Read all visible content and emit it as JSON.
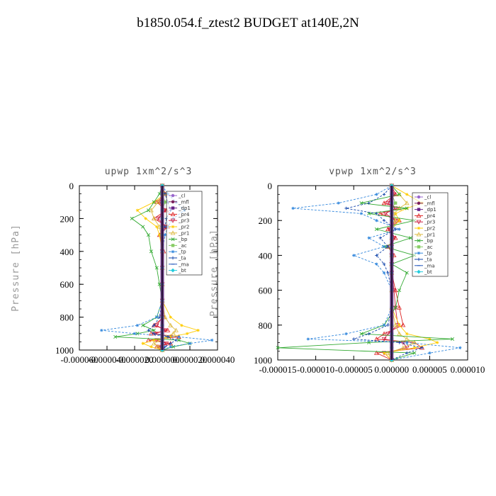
{
  "title": "b1850.054.f_ztest2  BUDGET at140E,2N",
  "chart_data": [
    {
      "type": "line",
      "title": "upwp   1xm^2/s^3",
      "xlabel": "",
      "ylabel": "Pressure [hPa]",
      "xlim": [
        -6e-05,
        4e-05
      ],
      "ylim": [
        1000,
        0
      ],
      "xticks": [
        -6e-05,
        -4e-05,
        -2e-05,
        0,
        2e-05,
        4e-05
      ],
      "xtick_labels": [
        "-0.000060",
        "-0.000040",
        "-0.000020",
        "0.000000",
        "0.000020",
        "0.000040"
      ],
      "yticks": [
        0,
        200,
        400,
        600,
        800,
        1000
      ],
      "legend_position": "top-right",
      "y": [
        0,
        50,
        100,
        150,
        200,
        250,
        300,
        400,
        500,
        600,
        700,
        800,
        850,
        880,
        900,
        920,
        940,
        960,
        980,
        1000
      ],
      "series": [
        {
          "name": "_cl",
          "color": "#9966cc",
          "values": [
            0,
            0,
            0,
            0,
            0,
            0,
            0,
            0,
            0,
            0,
            0,
            0,
            0,
            0,
            0,
            0,
            0,
            0,
            0,
            0
          ]
        },
        {
          "name": "_mfl",
          "color": "#7a1f5c",
          "values": [
            0,
            0,
            0,
            0,
            0,
            0,
            0,
            0,
            0,
            0,
            0,
            0,
            0,
            0,
            0,
            0,
            0,
            0,
            0,
            0
          ]
        },
        {
          "name": "_dp1",
          "color": "#66228a",
          "values": [
            0,
            0,
            0,
            0,
            0,
            0,
            0,
            0,
            0,
            0,
            0,
            0,
            0,
            0,
            0,
            0,
            0,
            0,
            0,
            0
          ]
        },
        {
          "name": "_pr4",
          "color": "#dd2222",
          "values": [
            0,
            2e-06,
            -4e-06,
            3e-06,
            -6e-06,
            4e-06,
            -2e-06,
            1e-06,
            0,
            0,
            0,
            1e-06,
            -6e-06,
            4e-06,
            -8e-06,
            1.2e-05,
            -1e-05,
            6e-06,
            -4e-06,
            0
          ]
        },
        {
          "name": "_pr3",
          "color": "#cc2244",
          "values": [
            0,
            1e-06,
            -2e-06,
            2e-06,
            -3e-06,
            2e-06,
            -1e-06,
            0,
            0,
            0,
            0,
            0,
            -4e-06,
            2e-06,
            -5e-06,
            6e-06,
            -4e-06,
            3e-06,
            -2e-06,
            0
          ]
        },
        {
          "name": "_pr2",
          "color": "#ffcc00",
          "values": [
            0,
            2e-06,
            -6e-06,
            -1.8e-05,
            -1.2e-05,
            -4e-06,
            -2e-06,
            0,
            0,
            0,
            0,
            6e-06,
            1.4e-05,
            2.6e-05,
            1.8e-05,
            6e-06,
            -6e-06,
            -1.4e-05,
            -8e-06,
            0
          ]
        },
        {
          "name": "_pr1",
          "color": "#ddbb44",
          "values": [
            0,
            1e-06,
            -3e-06,
            -8e-06,
            -6e-06,
            -2e-06,
            -1e-06,
            0,
            0,
            0,
            0,
            2e-06,
            6e-06,
            1e-05,
            8e-06,
            3e-06,
            -2e-06,
            -6e-06,
            -3e-06,
            0
          ]
        },
        {
          "name": "_bp",
          "color": "#33aa33",
          "values": [
            0,
            -2e-06,
            -6e-06,
            -1e-05,
            -2.2e-05,
            -1.4e-05,
            -1e-05,
            -8e-06,
            -4e-06,
            -2e-06,
            0,
            -4e-06,
            -1.4e-05,
            -6e-06,
            -1.8e-05,
            -3.4e-05,
            1.2e-05,
            2e-05,
            8e-06,
            0
          ]
        },
        {
          "name": "_ac",
          "color": "#88cc66",
          "values": [
            0,
            0,
            2e-06,
            0,
            0,
            0,
            0,
            0,
            0,
            0,
            0,
            0,
            0,
            0,
            0,
            0,
            0,
            0,
            0,
            0
          ]
        },
        {
          "name": "_tp",
          "color": "#3388dd",
          "values": [
            0,
            4e-06,
            1e-05,
            1.6e-05,
            8e-06,
            4e-06,
            2e-06,
            0,
            0,
            0,
            0,
            -4e-06,
            -1.8e-05,
            -4.4e-05,
            -2e-05,
            1.2e-05,
            3.6e-05,
            2e-05,
            6e-06,
            0
          ]
        },
        {
          "name": "_ta",
          "color": "#1144aa",
          "values": [
            0,
            2e-06,
            4e-06,
            6e-06,
            3e-06,
            2e-06,
            0,
            0,
            0,
            0,
            0,
            -2e-06,
            -6e-06,
            -1e-05,
            -6e-06,
            4e-06,
            1e-05,
            6e-06,
            2e-06,
            0
          ]
        },
        {
          "name": "_ma",
          "color": "#2255bb",
          "values": [
            0,
            0,
            0,
            0,
            0,
            0,
            0,
            0,
            0,
            0,
            0,
            0,
            0,
            0,
            0,
            0,
            0,
            0,
            0,
            0
          ]
        },
        {
          "name": "_bt",
          "color": "#22ccdd",
          "values": [
            0,
            0,
            0,
            0,
            0,
            0,
            0,
            0,
            0,
            0,
            0,
            0,
            0,
            0,
            0,
            0,
            0,
            0,
            0,
            0
          ]
        }
      ]
    },
    {
      "type": "line",
      "title": "vpwp   1xm^2/s^3",
      "xlabel": "",
      "ylabel": "Pressure [hPa]",
      "xlim": [
        -1.5e-05,
        1e-05
      ],
      "ylim": [
        1000,
        0
      ],
      "xticks": [
        -1.5e-05,
        -1e-05,
        -5e-06,
        0,
        5e-06,
        1e-05
      ],
      "xtick_labels": [
        "-0.000015",
        "-0.000010",
        "-0.000005",
        "0.000000",
        "0.000005",
        "0.000010"
      ],
      "yticks": [
        0,
        200,
        400,
        600,
        800,
        1000
      ],
      "legend_position": "top-right",
      "y": [
        0,
        50,
        100,
        130,
        160,
        200,
        250,
        300,
        350,
        400,
        450,
        500,
        600,
        700,
        800,
        850,
        880,
        900,
        930,
        960,
        1000
      ],
      "series": [
        {
          "name": "_cl",
          "color": "#9966cc",
          "values": [
            0,
            0,
            0,
            0,
            0,
            0,
            0,
            0,
            0,
            0,
            0,
            0,
            0,
            0,
            0,
            0,
            0,
            0,
            0,
            0,
            0
          ]
        },
        {
          "name": "_mfl",
          "color": "#7a1f5c",
          "values": [
            0,
            0,
            0,
            0,
            0,
            0,
            0,
            0,
            0,
            0,
            0,
            0,
            0,
            0,
            0,
            0,
            0,
            0,
            0,
            0,
            0
          ]
        },
        {
          "name": "_dp1",
          "color": "#66228a",
          "values": [
            0,
            0,
            0,
            0,
            0,
            0,
            0,
            0,
            0,
            0,
            0,
            0,
            0,
            0,
            0,
            0,
            0,
            0,
            0,
            0,
            0
          ]
        },
        {
          "name": "_pr4",
          "color": "#dd2222",
          "values": [
            0,
            5e-07,
            -1e-06,
            1e-06,
            -1.5e-06,
            1e-06,
            -5e-07,
            5e-07,
            -5e-07,
            3e-07,
            0,
            0,
            5e-07,
            1e-06,
            1.5e-06,
            -1e-06,
            -2e-06,
            3e-06,
            4e-06,
            -2e-06,
            0
          ]
        },
        {
          "name": "_pr3",
          "color": "#cc2244",
          "values": [
            0,
            3e-07,
            -5e-07,
            5e-07,
            -8e-07,
            5e-07,
            -3e-07,
            3e-07,
            0,
            0,
            0,
            0,
            3e-07,
            5e-07,
            8e-07,
            -5e-07,
            -1e-06,
            1.5e-06,
            2e-06,
            -1e-06,
            0
          ]
        },
        {
          "name": "_pr2",
          "color": "#ffcc00",
          "values": [
            0,
            2e-06,
            4e-06,
            2e-06,
            5e-07,
            1e-06,
            0,
            0,
            0,
            0,
            0,
            0,
            0,
            0,
            1e-06,
            2e-06,
            5e-06,
            6e-06,
            3e-06,
            -1e-06,
            0
          ]
        },
        {
          "name": "_pr1",
          "color": "#ddbb44",
          "values": [
            0,
            1e-06,
            2e-06,
            1e-06,
            3e-07,
            5e-07,
            0,
            0,
            0,
            0,
            0,
            0,
            0,
            0,
            5e-07,
            1e-06,
            2e-06,
            3e-06,
            1.5e-06,
            -5e-07,
            0
          ]
        },
        {
          "name": "_bp",
          "color": "#33aa33",
          "values": [
            0,
            1e-06,
            -4e-06,
            2e-06,
            -3e-06,
            3e-06,
            -2e-06,
            2.5e-06,
            -1e-06,
            3e-06,
            0,
            2e-06,
            1e-06,
            5e-07,
            -1e-06,
            -4e-06,
            8e-06,
            -3e-06,
            -1.5e-05,
            3e-06,
            0
          ]
        },
        {
          "name": "_ac",
          "color": "#88cc66",
          "values": [
            0,
            0,
            5e-07,
            0,
            0,
            0,
            0,
            0,
            0,
            0,
            0,
            0,
            0,
            0,
            0,
            0,
            0,
            0,
            0,
            0,
            0
          ]
        },
        {
          "name": "_tp",
          "color": "#3388dd",
          "values": [
            0,
            -2e-06,
            -7e-06,
            -1.3e-05,
            -4e-06,
            -2e-06,
            1e-06,
            -3e-06,
            -1e-06,
            -5e-06,
            -2e-06,
            -1e-06,
            0,
            0,
            -1e-06,
            -6e-06,
            -1.1e-05,
            2e-06,
            9e-06,
            5e-06,
            0
          ]
        },
        {
          "name": "_ta",
          "color": "#1144aa",
          "values": [
            0,
            -1e-06,
            -3e-06,
            -6e-06,
            -2e-06,
            -1e-06,
            5e-07,
            -1.5e-06,
            -5e-07,
            -2e-06,
            -1e-06,
            -5e-07,
            0,
            0,
            -5e-07,
            -3e-06,
            -5e-06,
            1e-06,
            4e-06,
            2e-06,
            0
          ]
        },
        {
          "name": "_ma",
          "color": "#2255bb",
          "values": [
            0,
            0,
            0,
            0,
            0,
            0,
            0,
            0,
            0,
            0,
            0,
            0,
            0,
            0,
            0,
            0,
            0,
            0,
            0,
            0,
            0
          ]
        },
        {
          "name": "_bt",
          "color": "#22ccdd",
          "values": [
            0,
            0,
            0,
            0,
            0,
            0,
            0,
            0,
            0,
            0,
            0,
            0,
            0,
            0,
            0,
            0,
            0,
            0,
            0,
            0,
            0
          ]
        }
      ]
    }
  ]
}
